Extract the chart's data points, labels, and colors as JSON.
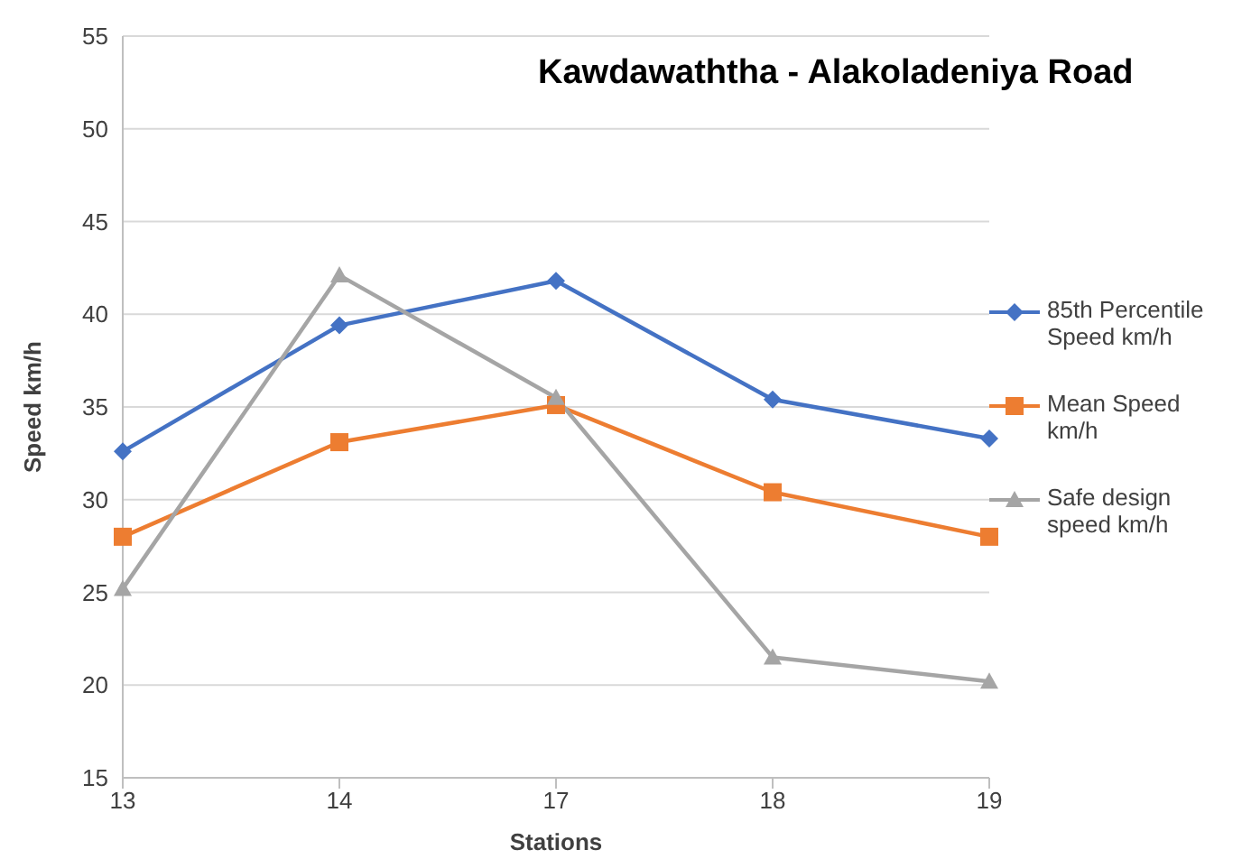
{
  "chart_data": {
    "type": "line",
    "title": "Kawdawaththa - Alakoladeniya Road",
    "xlabel": "Stations",
    "ylabel": "Speed  km/h",
    "categories": [
      "13",
      "14",
      "17",
      "18",
      "19"
    ],
    "series": [
      {
        "name": "85th Percentile Speed km/h",
        "color": "#4472c4",
        "marker": "diamond",
        "values": [
          32.6,
          39.4,
          41.8,
          35.4,
          33.3
        ]
      },
      {
        "name": "Mean Speed km/h",
        "color": "#ed7d31",
        "marker": "square",
        "values": [
          28.0,
          33.1,
          35.1,
          30.4,
          28.0
        ]
      },
      {
        "name": "Safe design speed km/h",
        "color": "#a5a5a5",
        "marker": "triangle",
        "values": [
          25.2,
          42.1,
          35.5,
          21.5,
          20.2
        ]
      }
    ],
    "ylim": [
      15,
      55
    ],
    "yticks": [
      15,
      20,
      25,
      30,
      35,
      40,
      45,
      50,
      55
    ],
    "grid": "y",
    "legend": "right",
    "line_style": "solid"
  }
}
